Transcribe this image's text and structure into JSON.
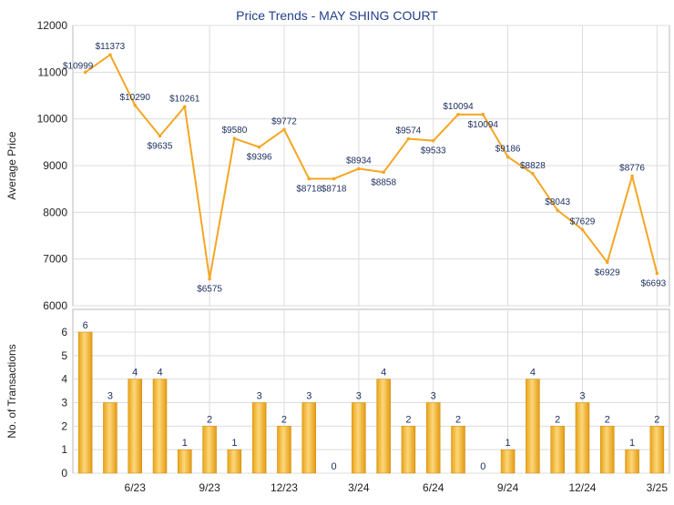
{
  "chart_data": [
    {
      "type": "line",
      "title": "Price Trends - MAY SHING COURT",
      "ylabel": "Average Price",
      "ylim": [
        6000,
        12000
      ],
      "yticks": [
        6000,
        7000,
        8000,
        9000,
        10000,
        11000,
        12000
      ],
      "x_tick_labels": [
        "6/23",
        "9/23",
        "12/23",
        "3/24",
        "6/24",
        "9/24",
        "12/24",
        "3/25"
      ],
      "grid": true,
      "line_color": "#F5A623",
      "values": [
        10999,
        11373,
        10290,
        9635,
        10261,
        6575,
        9580,
        9396,
        9772,
        8718,
        8718,
        8934,
        8858,
        9574,
        9533,
        10094,
        10094,
        9186,
        8828,
        8043,
        7629,
        6929,
        8776,
        6693
      ],
      "labels": [
        "$10999",
        "$11373",
        "$10290",
        "$9635",
        "$10261",
        "$6575",
        "$9580",
        "$9396",
        "$9772",
        "$8718",
        "$8718",
        "$8934",
        "$8858",
        "$9574",
        "$9533",
        "$10094",
        "$10094",
        "$9186",
        "$8828",
        "$8043",
        "$7629",
        "$6929",
        "$8776",
        "$6693"
      ]
    },
    {
      "type": "bar",
      "ylabel": "No. of Transactions",
      "ylim": [
        0,
        6
      ],
      "yticks": [
        0,
        1,
        2,
        3,
        4,
        5,
        6
      ],
      "x_tick_labels": [
        "6/23",
        "9/23",
        "12/23",
        "3/24",
        "6/24",
        "9/24",
        "12/24",
        "3/25"
      ],
      "grid": true,
      "bar_color": "#F5A623",
      "values": [
        6,
        3,
        4,
        4,
        1,
        2,
        1,
        3,
        2,
        3,
        0,
        3,
        4,
        2,
        3,
        2,
        0,
        1,
        4,
        2,
        3,
        2,
        1,
        2
      ]
    }
  ]
}
